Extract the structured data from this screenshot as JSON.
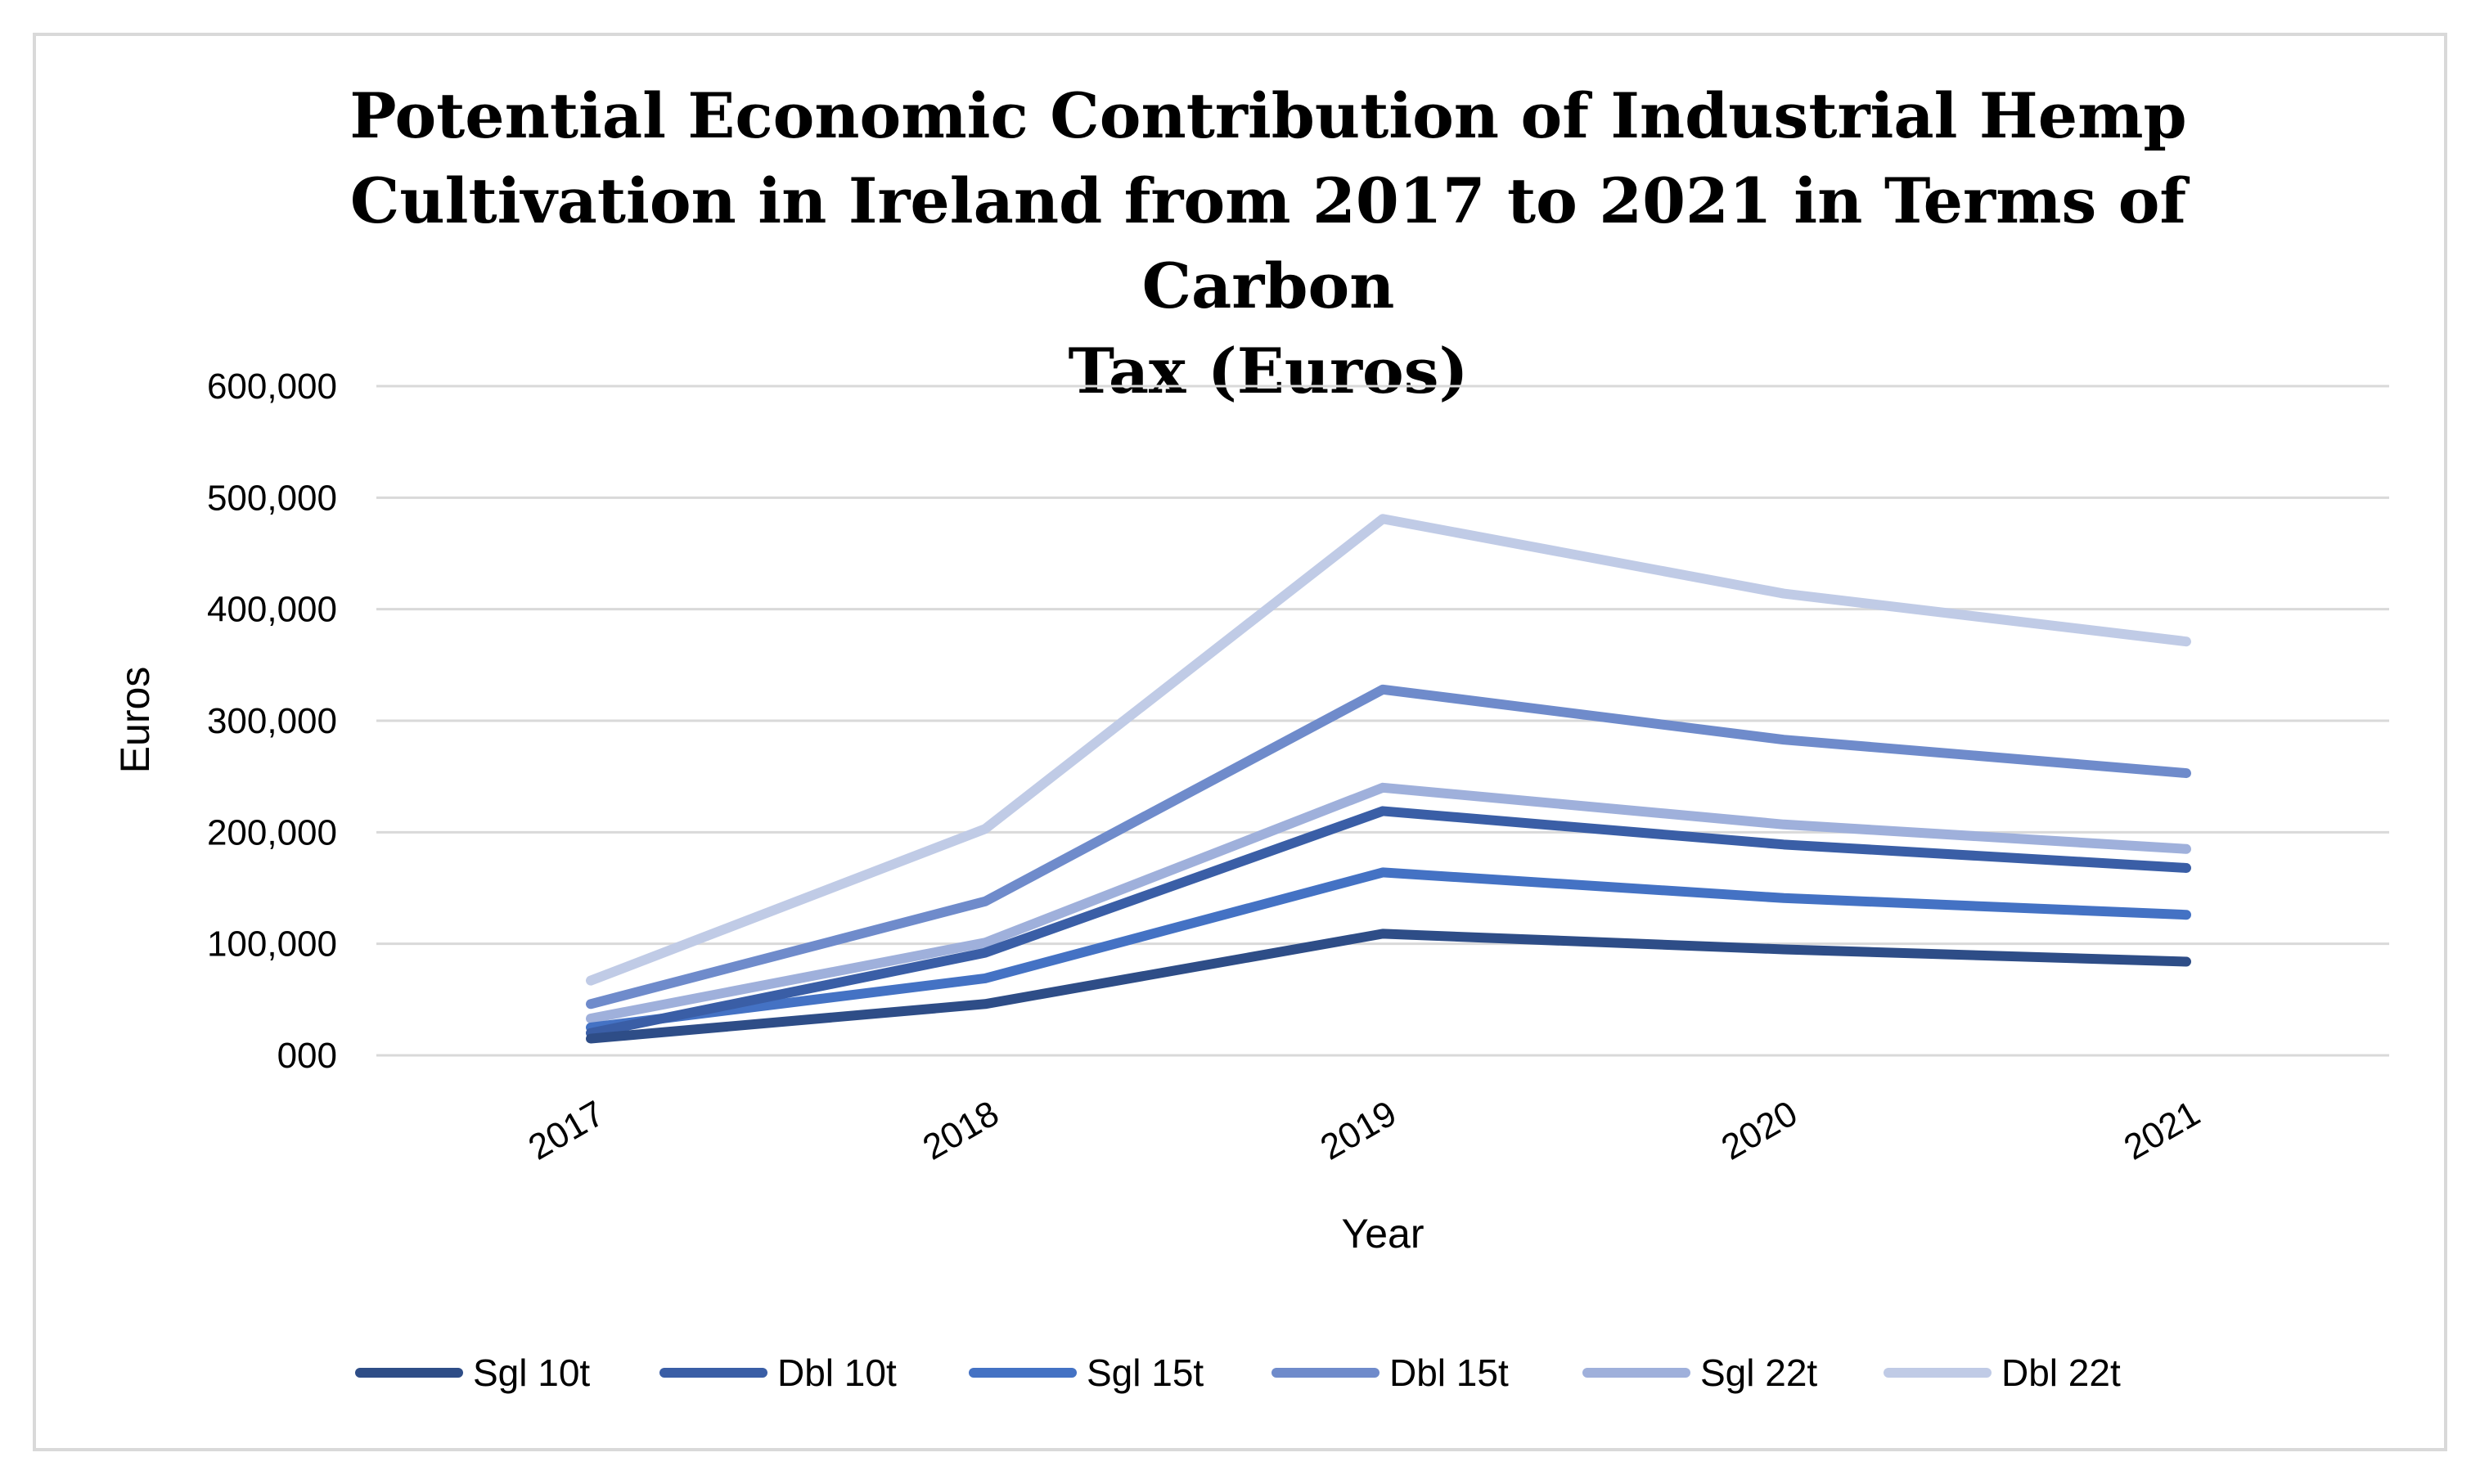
{
  "chart_data": {
    "type": "line",
    "title_lines": [
      "Potential Economic Contribution of Industrial Hemp",
      "Cultivation in Ireland from 2017 to 2021 in Terms of Carbon",
      "Tax (Euros)"
    ],
    "xlabel": "Year",
    "ylabel": "Euros",
    "categories": [
      "2017",
      "2018",
      "2019",
      "2020",
      "2021"
    ],
    "ylim": [
      0,
      600000
    ],
    "yticks": [
      0,
      100000,
      200000,
      300000,
      400000,
      500000,
      600000
    ],
    "ytick_labels": [
      "000",
      "100,000",
      "200,000",
      "300,000",
      "400,000",
      "500,000",
      "600,000"
    ],
    "grid": true,
    "legend_position": "bottom",
    "series": [
      {
        "name": "Sgl 10t",
        "color": "#2e4d87",
        "values": [
          15000,
          46000,
          109000,
          95000,
          84000
        ]
      },
      {
        "name": "Dbl 10t",
        "color": "#3a5ea6",
        "values": [
          20000,
          92000,
          219000,
          189000,
          168000
        ]
      },
      {
        "name": "Sgl 15t",
        "color": "#4472c4",
        "values": [
          25000,
          69000,
          164000,
          141000,
          126000
        ]
      },
      {
        "name": "Dbl 15t",
        "color": "#6f8bcb",
        "values": [
          46000,
          138000,
          328000,
          283000,
          253000
        ]
      },
      {
        "name": "Sgl 22t",
        "color": "#9fb0db",
        "values": [
          33000,
          101000,
          240000,
          207000,
          185000
        ]
      },
      {
        "name": "Dbl 22t",
        "color": "#c0cbe6",
        "values": [
          67000,
          203000,
          481000,
          414000,
          371000
        ]
      }
    ]
  }
}
